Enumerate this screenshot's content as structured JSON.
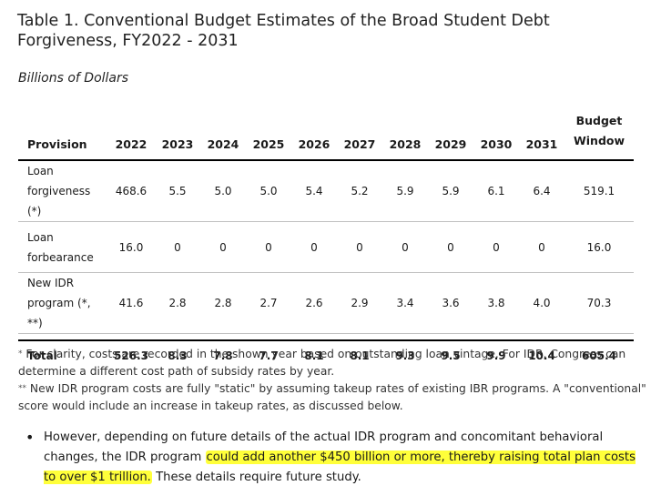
{
  "title": "Table 1. Conventional Budget Estimates of the Broad Student Debt Forgiveness, FY2022 - 2031",
  "subtitle": "Billions of Dollars",
  "table": {
    "provision_header": "Provision",
    "years": [
      "2022",
      "2023",
      "2024",
      "2025",
      "2026",
      "2027",
      "2028",
      "2029",
      "2030",
      "2031"
    ],
    "window_header_line1": "Budget",
    "window_header_line2": "Window",
    "rows": [
      {
        "line1": "Loan",
        "line2": "forgiveness (*)",
        "values": [
          "468.6",
          "5.5",
          "5.0",
          "5.0",
          "5.4",
          "5.2",
          "5.9",
          "5.9",
          "6.1",
          "6.4"
        ],
        "window": "519.1"
      },
      {
        "line1": "Loan",
        "line2": "forbearance",
        "values": [
          "16.0",
          "0",
          "0",
          "0",
          "0",
          "0",
          "0",
          "0",
          "0",
          "0"
        ],
        "window": "16.0"
      },
      {
        "line1": "New IDR",
        "line2": "program (*, **)",
        "values": [
          "41.6",
          "2.8",
          "2.8",
          "2.7",
          "2.6",
          "2.9",
          "3.4",
          "3.6",
          "3.8",
          "4.0"
        ],
        "window": "70.3"
      }
    ],
    "total": {
      "label": "Total",
      "values": [
        "526.3",
        "8.3",
        "7.8",
        "7.7",
        "8.1",
        "8.1",
        "9.3",
        "9.5",
        "9.9",
        "10.4"
      ],
      "window": "605.4"
    }
  },
  "notes": {
    "note1_marker": "*",
    "note1": " For clarity, costs are recorded in the shown year based on outstanding loan vintage. For IDR, Congress can determine a different cost path of subsidy rates by year.",
    "note2_marker": "**",
    "note2": " New IDR program costs are fully \"static\" by assuming takeup rates of existing IBR programs. A \"conventional\" score would include an increase in takeup rates, as discussed below."
  },
  "bullet": {
    "marker": "•",
    "text_before": "However, depending on future details of the actual IDR program and concomitant behavioral changes, the IDR program ",
    "highlight": "could add another $450 billion or more, thereby raising total plan costs to over $1 trillion.",
    "text_after": " These details require future study."
  },
  "colors": {
    "highlight": "#ffff3a",
    "rule": "#000000",
    "row_divider": "#bfbfbf"
  }
}
